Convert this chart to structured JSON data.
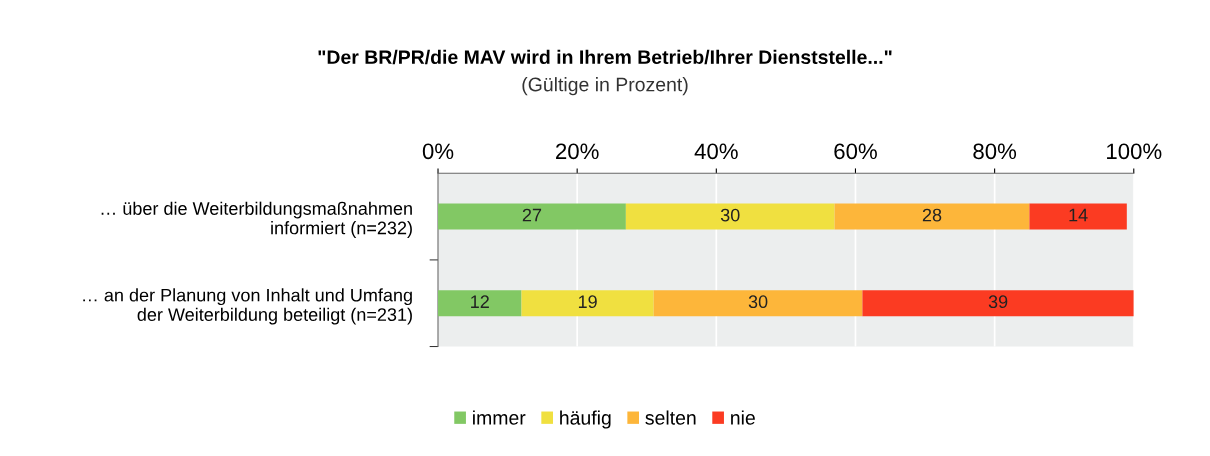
{
  "chart_data": {
    "type": "bar",
    "orientation": "horizontal",
    "stacked": true,
    "title": "\"Der BR/PR/die MAV wird in Ihrem Betrieb/Ihrer Dienststelle...\"",
    "subtitle": "(Gültige in Prozent)",
    "categories": [
      "… über die Weiterbildungsmaßnahmen\ninformiert (n=232)",
      "… an der Planung von Inhalt und Umfang\nder Weiterbildung beteiligt (n=231)"
    ],
    "series": [
      {
        "name": "immer",
        "color": "#82c864",
        "values": [
          27,
          12
        ]
      },
      {
        "name": "häufig",
        "color": "#f0e040",
        "values": [
          30,
          19
        ]
      },
      {
        "name": "selten",
        "color": "#fdb63a",
        "values": [
          28,
          30
        ]
      },
      {
        "name": "nie",
        "color": "#fb3b22",
        "values": [
          14,
          39
        ]
      }
    ],
    "xlim": [
      0,
      100
    ],
    "xticks": [
      {
        "value": 0,
        "label": "0%"
      },
      {
        "value": 20,
        "label": "20%"
      },
      {
        "value": 40,
        "label": "40%"
      },
      {
        "value": 60,
        "label": "60%"
      },
      {
        "value": 80,
        "label": "80%"
      },
      {
        "value": 100,
        "label": "100%"
      }
    ],
    "grid": "x",
    "legend": "bottom",
    "data_labels": true
  }
}
